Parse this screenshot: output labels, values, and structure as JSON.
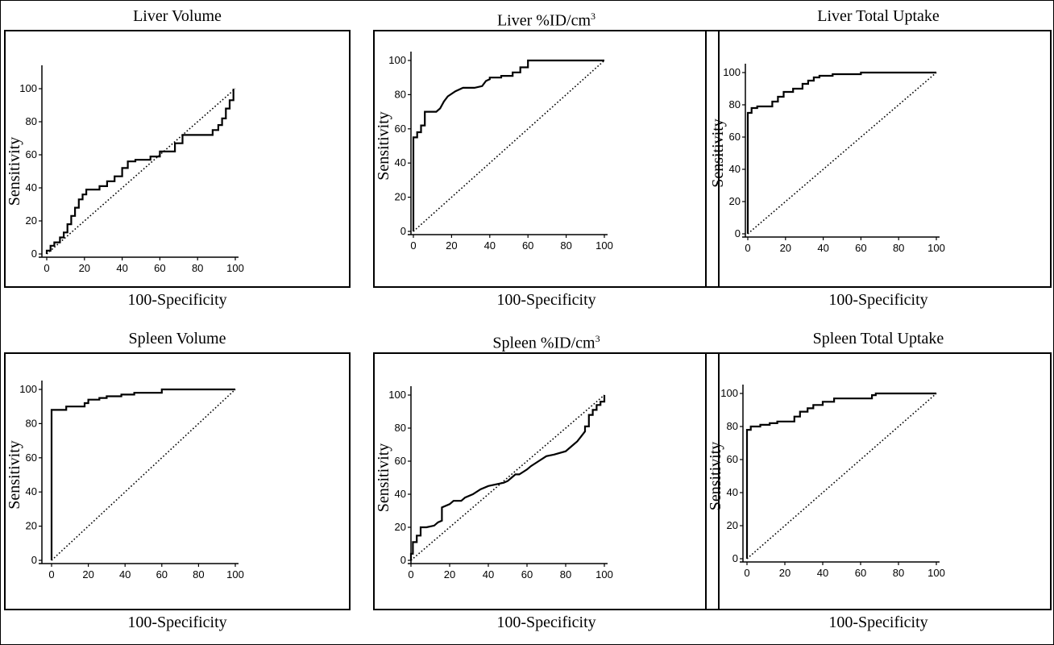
{
  "chart_data": [
    {
      "type": "line",
      "title": "Liver Volume",
      "xlabel": "100-Specificity",
      "ylabel": "Sensitivity",
      "xlim": [
        0,
        100
      ],
      "ylim": [
        0,
        100
      ],
      "x_ticks": [
        0,
        20,
        40,
        60,
        80,
        100
      ],
      "y_ticks": [
        0,
        20,
        40,
        60,
        80,
        100
      ],
      "series": [
        {
          "style": "solid",
          "x": [
            0,
            0,
            2,
            2,
            4,
            4,
            7,
            7,
            9,
            9,
            11,
            11,
            13,
            13,
            15,
            15,
            17,
            17,
            19,
            19,
            21,
            21,
            28,
            28,
            32,
            32,
            36,
            36,
            40,
            40,
            43,
            43,
            47,
            47,
            55,
            55,
            60,
            60,
            68,
            68,
            72,
            72,
            88,
            88,
            91,
            91,
            93,
            93,
            95,
            95,
            97,
            97,
            99,
            99
          ],
          "y": [
            0,
            2,
            2,
            5,
            5,
            7,
            7,
            10,
            10,
            13,
            13,
            18,
            18,
            23,
            23,
            28,
            28,
            33,
            33,
            36,
            36,
            39,
            39,
            41,
            41,
            44,
            44,
            47,
            47,
            52,
            52,
            56,
            56,
            57,
            57,
            59,
            59,
            62,
            62,
            67,
            67,
            72,
            72,
            75,
            75,
            78,
            78,
            82,
            82,
            88,
            88,
            93,
            93,
            100
          ]
        },
        {
          "style": "dotted",
          "x": [
            0,
            100
          ],
          "y": [
            0,
            100
          ]
        }
      ]
    },
    {
      "type": "line",
      "title": "Liver %ID/cm",
      "title_sup": "3",
      "xlabel": "100-Specificity",
      "ylabel": "Sensitivity",
      "xlim": [
        0,
        100
      ],
      "ylim": [
        0,
        100
      ],
      "x_ticks": [
        0,
        20,
        40,
        60,
        80,
        100
      ],
      "y_ticks": [
        0,
        20,
        40,
        60,
        80,
        100
      ],
      "series": [
        {
          "style": "solid",
          "x": [
            0,
            0,
            2,
            2,
            4,
            4,
            6,
            6,
            12,
            14,
            16,
            18,
            22,
            26,
            32,
            36,
            38,
            40,
            40,
            46,
            46,
            52,
            52,
            56,
            56,
            60,
            60,
            100
          ],
          "y": [
            0,
            55,
            55,
            58,
            58,
            62,
            62,
            70,
            70,
            72,
            76,
            79,
            82,
            84,
            84,
            85,
            88,
            89,
            90,
            90,
            91,
            91,
            93,
            93,
            96,
            96,
            100,
            100
          ]
        },
        {
          "style": "dotted",
          "x": [
            0,
            100
          ],
          "y": [
            0,
            100
          ]
        }
      ]
    },
    {
      "type": "line",
      "title": "Liver Total Uptake",
      "xlabel": "100-Specificity",
      "ylabel": "Sensitivity",
      "xlim": [
        0,
        100
      ],
      "ylim": [
        0,
        100
      ],
      "x_ticks": [
        0,
        20,
        40,
        60,
        80,
        100
      ],
      "y_ticks": [
        0,
        20,
        40,
        60,
        80,
        100
      ],
      "series": [
        {
          "style": "solid",
          "x": [
            0,
            0,
            2,
            2,
            5,
            5,
            13,
            13,
            16,
            16,
            19,
            19,
            24,
            24,
            29,
            29,
            32,
            32,
            35,
            35,
            38,
            38,
            45,
            45,
            60,
            60,
            100
          ],
          "y": [
            0,
            75,
            75,
            78,
            78,
            79,
            79,
            82,
            82,
            85,
            85,
            88,
            88,
            90,
            90,
            93,
            93,
            95,
            95,
            97,
            97,
            98,
            98,
            99,
            99,
            100,
            100
          ]
        },
        {
          "style": "dotted",
          "x": [
            0,
            100
          ],
          "y": [
            0,
            100
          ]
        }
      ]
    },
    {
      "type": "line",
      "title": "Spleen Volume",
      "xlabel": "100-Specificity",
      "ylabel": "Sensitivity",
      "xlim": [
        0,
        100
      ],
      "ylim": [
        0,
        100
      ],
      "x_ticks": [
        0,
        20,
        40,
        60,
        80,
        100
      ],
      "y_ticks": [
        0,
        20,
        40,
        60,
        80,
        100
      ],
      "series": [
        {
          "style": "solid",
          "x": [
            0,
            0,
            8,
            8,
            18,
            18,
            20,
            20,
            26,
            26,
            30,
            30,
            38,
            38,
            45,
            45,
            60,
            60,
            100
          ],
          "y": [
            0,
            88,
            88,
            90,
            90,
            92,
            92,
            94,
            94,
            95,
            95,
            96,
            96,
            97,
            97,
            98,
            98,
            100,
            100
          ]
        },
        {
          "style": "dotted",
          "x": [
            0,
            100
          ],
          "y": [
            0,
            100
          ]
        }
      ]
    },
    {
      "type": "line",
      "title": "Spleen %ID/cm",
      "title_sup": "3",
      "xlabel": "100-Specificity",
      "ylabel": "Sensitivity",
      "xlim": [
        0,
        100
      ],
      "ylim": [
        0,
        100
      ],
      "x_ticks": [
        0,
        20,
        40,
        60,
        80,
        100
      ],
      "y_ticks": [
        0,
        20,
        40,
        60,
        80,
        100
      ],
      "series": [
        {
          "style": "solid",
          "x": [
            0,
            0,
            1,
            1,
            3,
            3,
            5,
            5,
            8,
            12,
            14,
            16,
            16,
            20,
            22,
            26,
            28,
            32,
            36,
            40,
            48,
            50,
            52,
            54,
            56,
            60,
            62,
            66,
            70,
            74,
            80,
            84,
            86,
            88,
            90,
            90,
            92,
            92,
            94,
            94,
            96,
            96,
            98,
            98,
            100,
            100
          ],
          "y": [
            0,
            4,
            4,
            11,
            11,
            15,
            15,
            20,
            20,
            21,
            23,
            24,
            32,
            34,
            36,
            36,
            38,
            40,
            43,
            45,
            47,
            48,
            50,
            52,
            52,
            55,
            57,
            60,
            63,
            64,
            66,
            70,
            72,
            75,
            78,
            81,
            81,
            88,
            88,
            91,
            91,
            94,
            94,
            96,
            96,
            100
          ]
        },
        {
          "style": "dotted",
          "x": [
            0,
            100
          ],
          "y": [
            0,
            100
          ]
        }
      ]
    },
    {
      "type": "line",
      "title": "Spleen Total Uptake",
      "xlabel": "100-Specificity",
      "ylabel": "Sensitivity",
      "xlim": [
        0,
        100
      ],
      "ylim": [
        0,
        100
      ],
      "x_ticks": [
        0,
        20,
        40,
        60,
        80,
        100
      ],
      "y_ticks": [
        0,
        20,
        40,
        60,
        80,
        100
      ],
      "series": [
        {
          "style": "solid",
          "x": [
            0,
            0,
            2,
            2,
            7,
            7,
            12,
            12,
            16,
            16,
            25,
            25,
            28,
            28,
            32,
            32,
            35,
            35,
            40,
            40,
            46,
            46,
            66,
            66,
            68,
            68,
            100
          ],
          "y": [
            0,
            78,
            78,
            80,
            80,
            81,
            81,
            82,
            82,
            83,
            83,
            86,
            86,
            89,
            89,
            91,
            91,
            93,
            93,
            95,
            95,
            97,
            97,
            99,
            99,
            100,
            100
          ]
        },
        {
          "style": "dotted",
          "x": [
            0,
            100
          ],
          "y": [
            0,
            100
          ]
        }
      ]
    }
  ]
}
